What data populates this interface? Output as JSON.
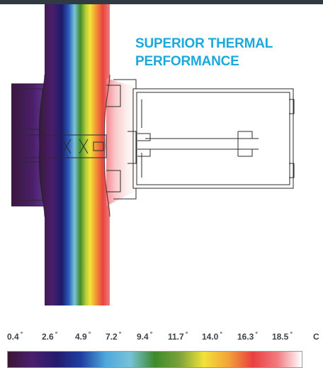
{
  "headline": {
    "line1": "SUPERIOR THERMAL",
    "line2": "PERFORMANCE"
  },
  "legend": {
    "ticks": [
      "0.4",
      "2.6",
      "4.9",
      "7.2",
      "9.4",
      "11.7",
      "14.0",
      "16.3",
      "18.5"
    ],
    "degree_symbol": "°",
    "unit": "C"
  },
  "colors": {
    "accent": "#1ba9dd",
    "top_bar": "#2f3a43",
    "gradient": [
      "#3a1637",
      "#4b1e6b",
      "#241a6e",
      "#1f3fa0",
      "#4ea8dc",
      "#78c2d8",
      "#3d8a2a",
      "#7aa13a",
      "#f2e23a",
      "#f2a33a",
      "#e94040",
      "#f07b80",
      "#ffffff"
    ]
  }
}
